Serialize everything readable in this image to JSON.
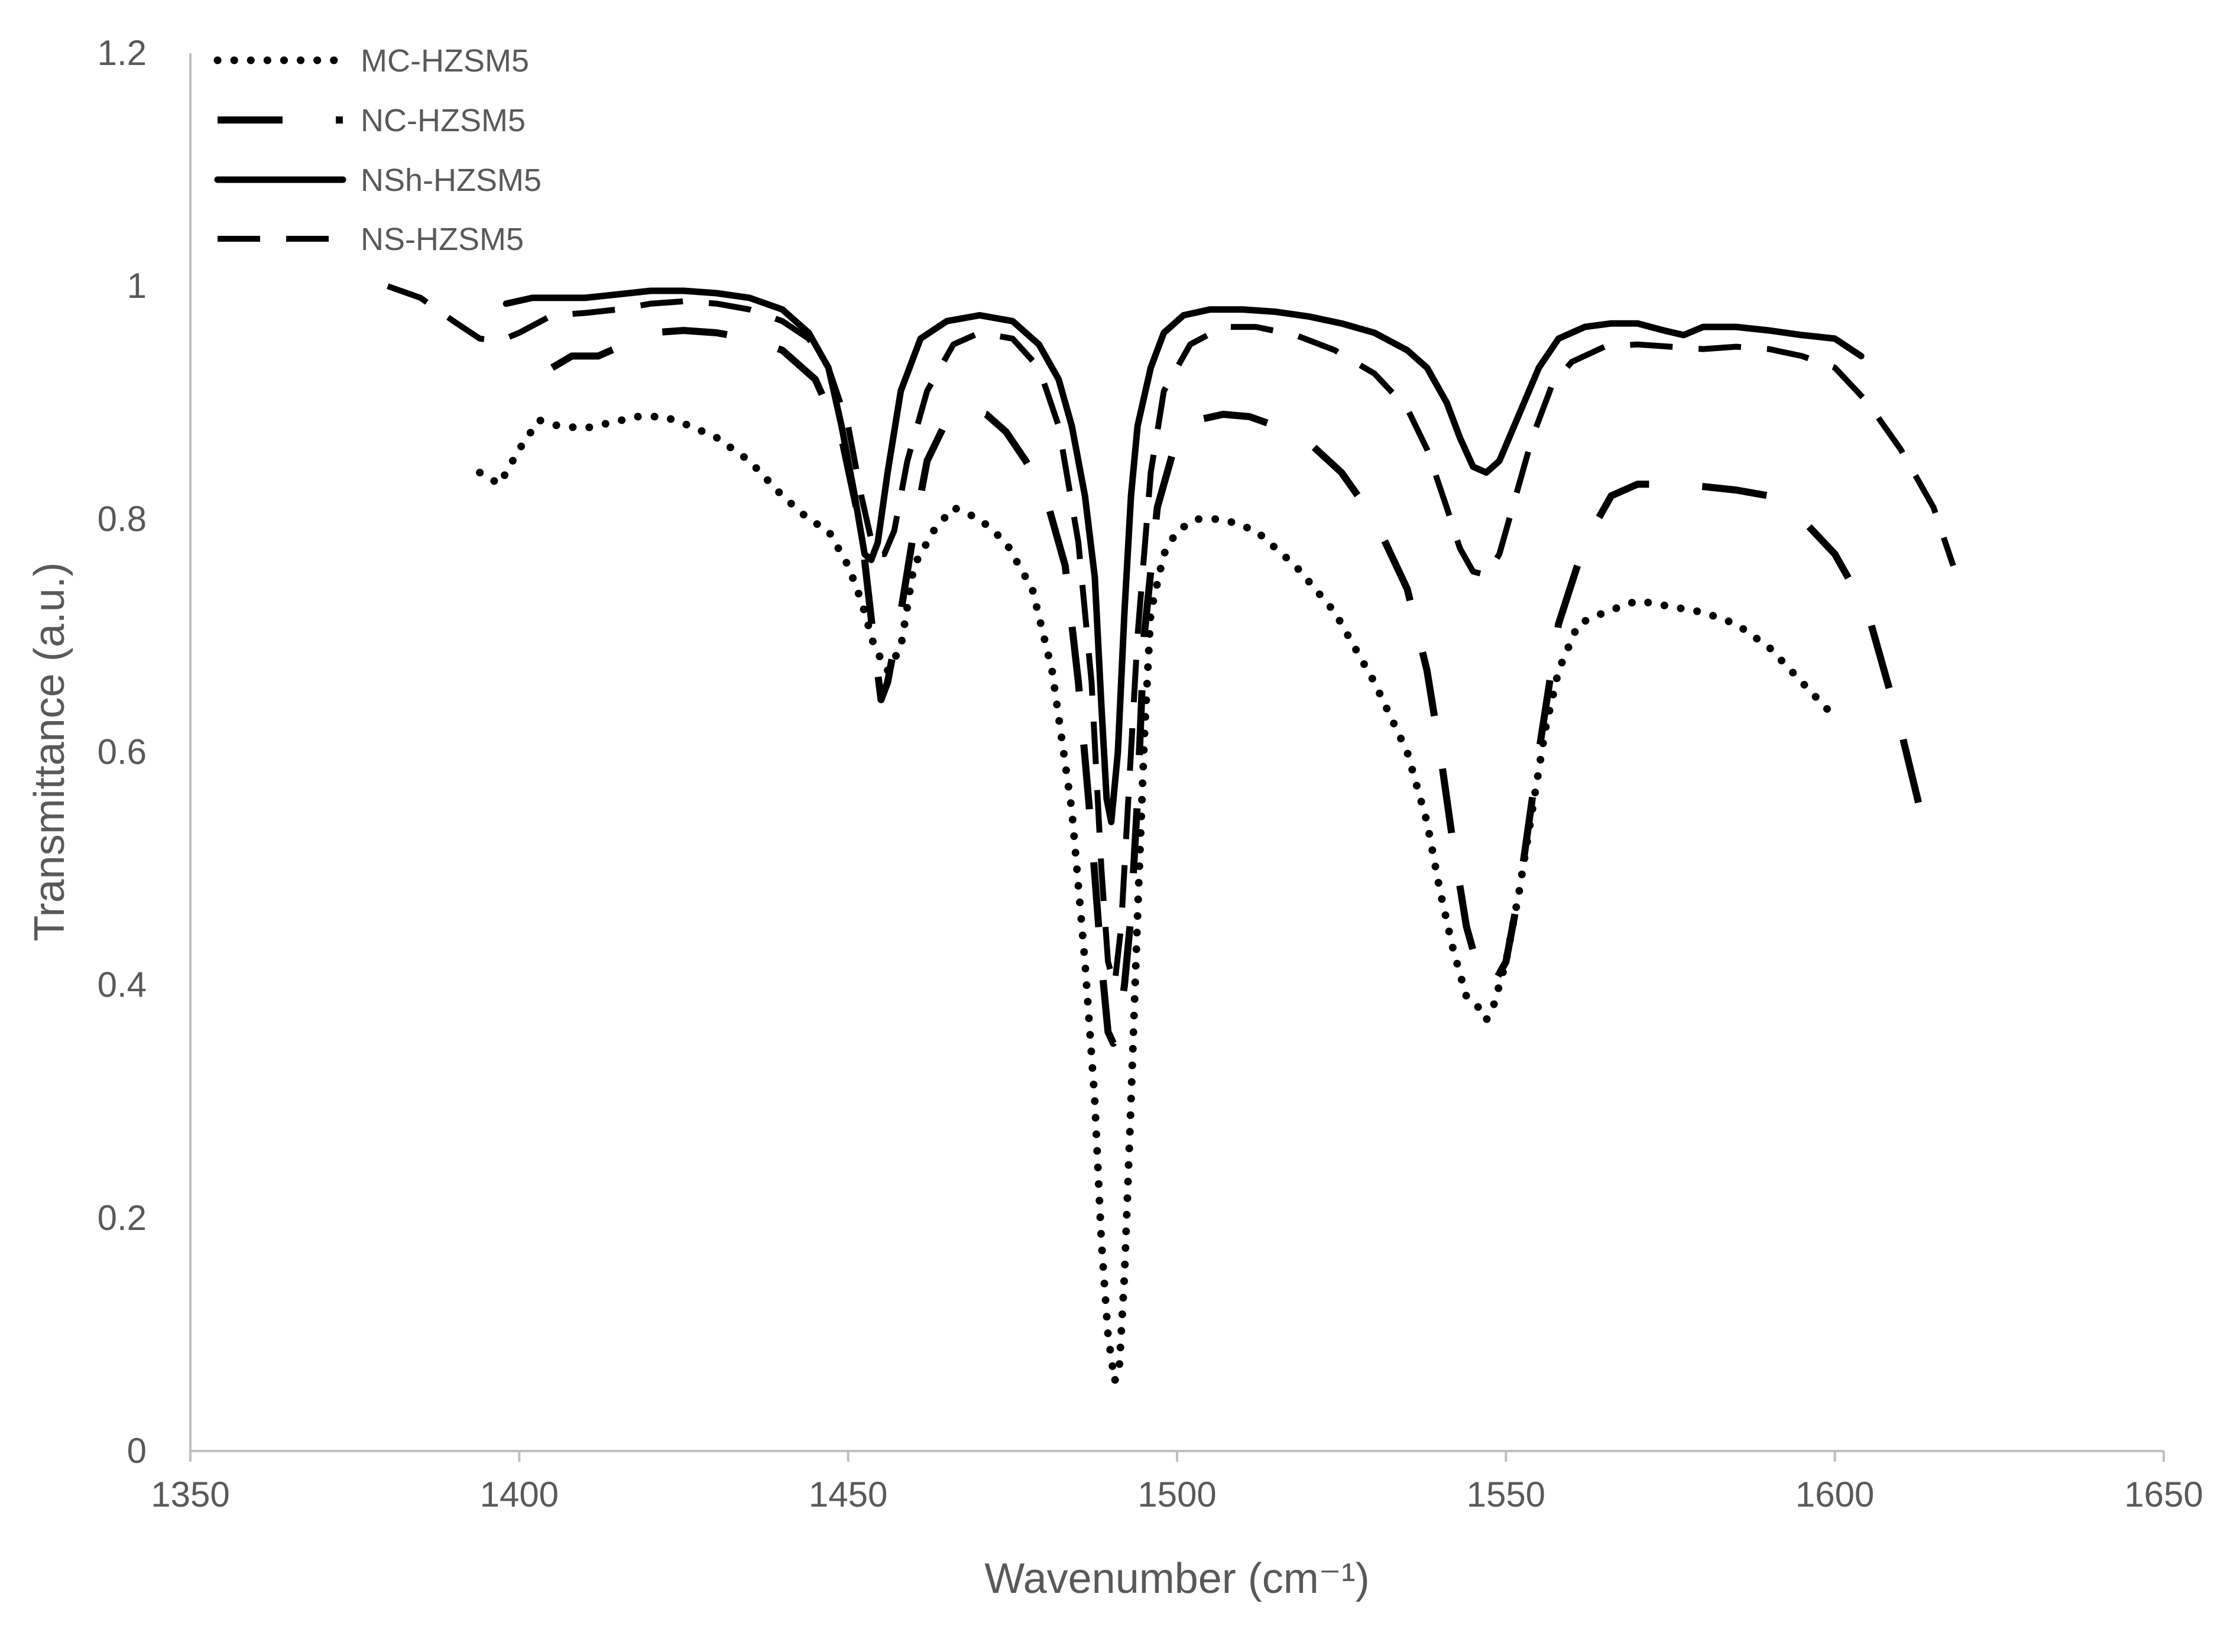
{
  "chart_data": {
    "type": "line",
    "title": "",
    "xlabel": "Wavenumber (cm⁻¹)",
    "ylabel": "Transmittance (a.u.)",
    "xlim": [
      1350,
      1650
    ],
    "ylim": [
      0,
      1.2
    ],
    "xticks": [
      1350,
      1400,
      1450,
      1500,
      1550,
      1600,
      1650
    ],
    "yticks": [
      0,
      0.2,
      0.4,
      0.6,
      0.8,
      1,
      1.2
    ],
    "xtick_labels": [
      "1350",
      "1400",
      "1450",
      "1500",
      "1550",
      "1600",
      "1650"
    ],
    "ytick_labels": [
      "0",
      "0.2",
      "0.4",
      "0.6",
      "0.8",
      "1",
      "1.2"
    ],
    "grid": false,
    "legend_position": "top-left",
    "series": [
      {
        "name": "MC-HZSM5",
        "style": "dotted",
        "color": "#000000",
        "x": [
          1394,
          1397,
          1400,
          1403,
          1406,
          1410,
          1414,
          1418,
          1422,
          1426,
          1430,
          1435,
          1440,
          1444,
          1447,
          1450,
          1452,
          1454,
          1456,
          1458,
          1460,
          1463,
          1466,
          1470,
          1474,
          1478,
          1481,
          1484,
          1486,
          1487.5,
          1488.5,
          1489.5,
          1490.5,
          1491.2,
          1492,
          1493,
          1494,
          1495,
          1496,
          1498,
          1500,
          1503,
          1507,
          1512,
          1518,
          1524,
          1530,
          1535,
          1538,
          1540,
          1542,
          1544,
          1546,
          1547,
          1548,
          1550,
          1552,
          1554,
          1556,
          1558,
          1561,
          1565,
          1570,
          1575,
          1580,
          1585,
          1590,
          1595,
          1600
        ],
        "values": [
          0.84,
          0.83,
          0.86,
          0.885,
          0.88,
          0.878,
          0.883,
          0.888,
          0.888,
          0.88,
          0.87,
          0.85,
          0.82,
          0.8,
          0.79,
          0.76,
          0.73,
          0.69,
          0.67,
          0.69,
          0.76,
          0.79,
          0.81,
          0.8,
          0.78,
          0.74,
          0.67,
          0.55,
          0.42,
          0.3,
          0.18,
          0.1,
          0.06,
          0.07,
          0.15,
          0.3,
          0.46,
          0.61,
          0.72,
          0.77,
          0.79,
          0.8,
          0.8,
          0.79,
          0.76,
          0.72,
          0.66,
          0.6,
          0.54,
          0.48,
          0.43,
          0.39,
          0.38,
          0.37,
          0.38,
          0.42,
          0.48,
          0.55,
          0.62,
          0.67,
          0.71,
          0.72,
          0.73,
          0.725,
          0.72,
          0.71,
          0.69,
          0.66,
          0.63
        ]
      },
      {
        "name": "NC-HZSM5",
        "style": "long-dash",
        "color": "#000000",
        "x": [
          1405,
          1408,
          1412,
          1416,
          1420,
          1425,
          1430,
          1435,
          1440,
          1445,
          1449,
          1452,
          1454,
          1455,
          1456,
          1458,
          1460,
          1462,
          1465,
          1468,
          1471,
          1474,
          1477,
          1480,
          1483,
          1485,
          1487,
          1488.5,
          1489.5,
          1490.3,
          1491,
          1492,
          1493,
          1494,
          1495,
          1497,
          1500,
          1503,
          1507,
          1511,
          1515,
          1520,
          1525,
          1530,
          1535,
          1538,
          1540,
          1542,
          1544,
          1546,
          1548,
          1550,
          1552,
          1555,
          1558,
          1562,
          1566,
          1570,
          1575,
          1580,
          1585,
          1590,
          1595,
          1600,
          1605,
          1610,
          1613
        ],
        "values": [
          0.93,
          0.94,
          0.94,
          0.95,
          0.96,
          0.962,
          0.96,
          0.955,
          0.945,
          0.92,
          0.87,
          0.79,
          0.69,
          0.645,
          0.66,
          0.72,
          0.79,
          0.85,
          0.885,
          0.895,
          0.89,
          0.875,
          0.85,
          0.82,
          0.76,
          0.66,
          0.53,
          0.42,
          0.36,
          0.35,
          0.36,
          0.4,
          0.46,
          0.56,
          0.7,
          0.81,
          0.87,
          0.885,
          0.89,
          0.888,
          0.88,
          0.866,
          0.84,
          0.8,
          0.74,
          0.67,
          0.6,
          0.52,
          0.45,
          0.41,
          0.4,
          0.42,
          0.48,
          0.6,
          0.71,
          0.78,
          0.82,
          0.83,
          0.83,
          0.828,
          0.825,
          0.82,
          0.8,
          0.77,
          0.72,
          0.62,
          0.55
        ]
      },
      {
        "name": "NSh-HZSM5",
        "style": "solid",
        "color": "#000000",
        "x": [
          1398,
          1402,
          1406,
          1410,
          1415,
          1420,
          1425,
          1430,
          1435,
          1440,
          1444,
          1447,
          1449,
          1451,
          1452.5,
          1453.5,
          1454.5,
          1456,
          1458,
          1461,
          1465,
          1470,
          1475,
          1479,
          1482,
          1484,
          1486,
          1487.5,
          1488.5,
          1489.3,
          1490,
          1491,
          1492,
          1493,
          1494,
          1496,
          1498,
          1501,
          1505,
          1510,
          1515,
          1520,
          1525,
          1530,
          1535,
          1538,
          1541,
          1543,
          1545,
          1547,
          1549,
          1552,
          1555,
          1558,
          1562,
          1566,
          1570,
          1574,
          1577,
          1580,
          1585,
          1590,
          1595,
          1600,
          1604
        ],
        "values": [
          0.985,
          0.99,
          0.99,
          0.99,
          0.993,
          0.996,
          0.996,
          0.994,
          0.99,
          0.98,
          0.96,
          0.93,
          0.88,
          0.82,
          0.77,
          0.765,
          0.78,
          0.84,
          0.91,
          0.955,
          0.97,
          0.975,
          0.97,
          0.95,
          0.92,
          0.88,
          0.82,
          0.75,
          0.64,
          0.56,
          0.54,
          0.6,
          0.72,
          0.82,
          0.88,
          0.93,
          0.96,
          0.975,
          0.98,
          0.98,
          0.978,
          0.974,
          0.968,
          0.96,
          0.945,
          0.93,
          0.9,
          0.87,
          0.845,
          0.84,
          0.85,
          0.89,
          0.93,
          0.955,
          0.965,
          0.968,
          0.968,
          0.962,
          0.958,
          0.965,
          0.965,
          0.962,
          0.958,
          0.955,
          0.94
        ]
      },
      {
        "name": "NS-HZSM5",
        "style": "dashed",
        "color": "#000000",
        "x": [
          1380,
          1385,
          1390,
          1394,
          1397,
          1400,
          1405,
          1410,
          1415,
          1420,
          1425,
          1430,
          1435,
          1440,
          1444,
          1447,
          1450,
          1452,
          1454,
          1455.5,
          1457,
          1459,
          1462,
          1466,
          1470,
          1475,
          1479,
          1482,
          1485,
          1487,
          1488.5,
          1489.5,
          1490.5,
          1491.5,
          1492.5,
          1494,
          1496,
          1498,
          1502,
          1507,
          1512,
          1518,
          1524,
          1530,
          1535,
          1538,
          1541,
          1543,
          1545,
          1547,
          1549,
          1551,
          1554,
          1557,
          1560,
          1565,
          1570,
          1575,
          1580,
          1585,
          1590,
          1595,
          1600,
          1605,
          1610,
          1615,
          1618
        ],
        "values": [
          1.0,
          0.99,
          0.97,
          0.955,
          0.953,
          0.96,
          0.975,
          0.977,
          0.98,
          0.985,
          0.987,
          0.985,
          0.98,
          0.97,
          0.955,
          0.93,
          0.88,
          0.82,
          0.77,
          0.77,
          0.79,
          0.85,
          0.91,
          0.95,
          0.96,
          0.955,
          0.93,
          0.88,
          0.78,
          0.66,
          0.5,
          0.42,
          0.4,
          0.45,
          0.55,
          0.7,
          0.84,
          0.91,
          0.95,
          0.965,
          0.965,
          0.958,
          0.945,
          0.925,
          0.895,
          0.86,
          0.81,
          0.775,
          0.755,
          0.752,
          0.77,
          0.81,
          0.87,
          0.915,
          0.935,
          0.948,
          0.95,
          0.948,
          0.946,
          0.948,
          0.946,
          0.94,
          0.93,
          0.9,
          0.86,
          0.81,
          0.76
        ]
      }
    ]
  }
}
